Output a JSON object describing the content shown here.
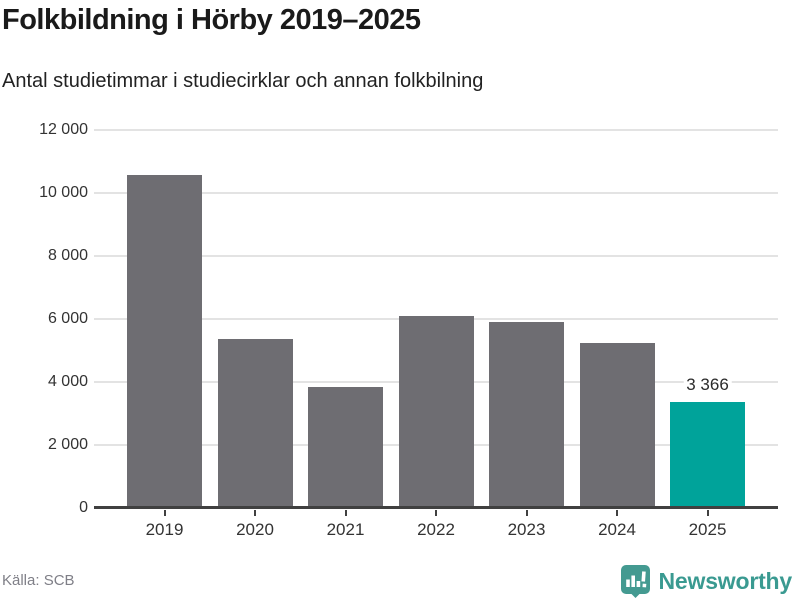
{
  "header": {
    "title": "Folkbildning i Hörby 2019–2025",
    "subtitle": "Antal studietimmar i studiecirklar och annan folkbilning"
  },
  "footer": {
    "source": "Källa: SCB",
    "brand_name": "Newsworthy"
  },
  "colors": {
    "bar_default": "#6e6d72",
    "bar_highlight": "#00a39a",
    "gridline": "#e3e3e3",
    "axis": "#404040",
    "brand": "#3a9a91"
  },
  "chart_data": {
    "type": "bar",
    "title": "Folkbildning i Hörby 2019–2025",
    "subtitle": "Antal studietimmar i studiecirklar och annan folkbilning",
    "categories": [
      "2019",
      "2020",
      "2021",
      "2022",
      "2023",
      "2024",
      "2025"
    ],
    "values": [
      10570,
      5370,
      3850,
      6080,
      5910,
      5240,
      3366
    ],
    "value_labels": [
      null,
      null,
      null,
      null,
      null,
      null,
      "3 366"
    ],
    "highlight_index": 6,
    "xlabel": "",
    "ylabel": "",
    "ylim": [
      0,
      12000
    ],
    "yticks": [
      {
        "value": 0,
        "label": "0"
      },
      {
        "value": 2000,
        "label": "2 000"
      },
      {
        "value": 4000,
        "label": "4 000"
      },
      {
        "value": 6000,
        "label": "6 000"
      },
      {
        "value": 8000,
        "label": "8 000"
      },
      {
        "value": 10000,
        "label": "10 000"
      },
      {
        "value": 12000,
        "label": "12 000"
      }
    ],
    "grid": "horizontal",
    "legend": "none"
  }
}
